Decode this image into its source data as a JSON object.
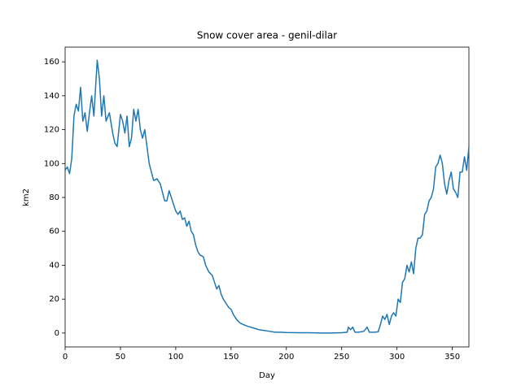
{
  "chart_data": {
    "type": "line",
    "title": "Snow cover area - genil-dilar",
    "x_label": "Day",
    "y_label": "km2",
    "xlim": [
      0,
      365
    ],
    "ylim": [
      -8.2,
      168.7
    ],
    "xticks": [
      0,
      50,
      100,
      150,
      200,
      250,
      300,
      350
    ],
    "yticks": [
      0,
      20,
      40,
      60,
      80,
      100,
      120,
      140,
      160
    ],
    "series": [
      {
        "color": "#1f77b4",
        "x": [
          0,
          2,
          4,
          6,
          8,
          10,
          12,
          14,
          16,
          18,
          20,
          22,
          24,
          26,
          28,
          29,
          31,
          33,
          35,
          37,
          40,
          43,
          45,
          47,
          50,
          52,
          54,
          56,
          58,
          60,
          62,
          64,
          66,
          68,
          70,
          72,
          74,
          76,
          78,
          80,
          83,
          86,
          88,
          90,
          92,
          94,
          96,
          98,
          100,
          102,
          104,
          106,
          108,
          110,
          112,
          114,
          116,
          118,
          120,
          122,
          125,
          127,
          130,
          133,
          135,
          137,
          139,
          141,
          143,
          145,
          148,
          150,
          152,
          155,
          158,
          161,
          165,
          170,
          175,
          180,
          185,
          190,
          195,
          200,
          210,
          220,
          230,
          240,
          250,
          255,
          256,
          258,
          260,
          262,
          265,
          270,
          273,
          275,
          280,
          283,
          285,
          287,
          289,
          291,
          293,
          295,
          297,
          299,
          301,
          303,
          305,
          307,
          309,
          311,
          313,
          315,
          317,
          319,
          321,
          323,
          325,
          327,
          329,
          331,
          333,
          335,
          337,
          339,
          341,
          343,
          345,
          347,
          349,
          351,
          353,
          355,
          357,
          359,
          361,
          363,
          365
        ],
        "values": [
          96,
          98,
          94,
          103,
          128,
          135,
          131,
          145,
          125,
          130,
          119,
          130,
          140,
          128,
          150,
          161,
          150,
          128,
          140,
          125,
          130,
          118,
          112,
          110,
          129,
          125,
          118,
          128,
          110,
          115,
          132,
          125,
          132,
          120,
          115,
          120,
          110,
          100,
          95,
          90,
          91,
          88,
          83,
          78,
          78,
          84,
          80,
          76,
          72,
          70,
          72,
          67,
          68,
          63,
          66,
          60,
          58,
          52,
          48,
          46,
          45,
          40,
          36,
          34,
          30,
          26,
          28,
          23,
          20,
          18,
          15,
          14,
          11,
          8,
          6,
          5,
          4,
          3,
          2,
          1.5,
          1,
          0.5,
          0.5,
          0.3,
          0.2,
          0.2,
          0,
          0,
          0.2,
          0.5,
          3.5,
          2,
          3.5,
          0.5,
          0.5,
          1,
          3.5,
          0.5,
          0.5,
          0.8,
          5,
          10,
          8,
          11,
          5,
          10,
          12,
          10,
          20,
          18,
          30,
          32,
          40,
          36,
          42,
          35,
          50,
          56,
          56,
          58,
          70,
          72,
          78,
          80,
          85,
          98,
          100,
          105,
          100,
          88,
          82,
          90,
          95,
          85,
          83,
          80,
          95,
          95,
          104,
          96,
          110
        ]
      }
    ]
  }
}
